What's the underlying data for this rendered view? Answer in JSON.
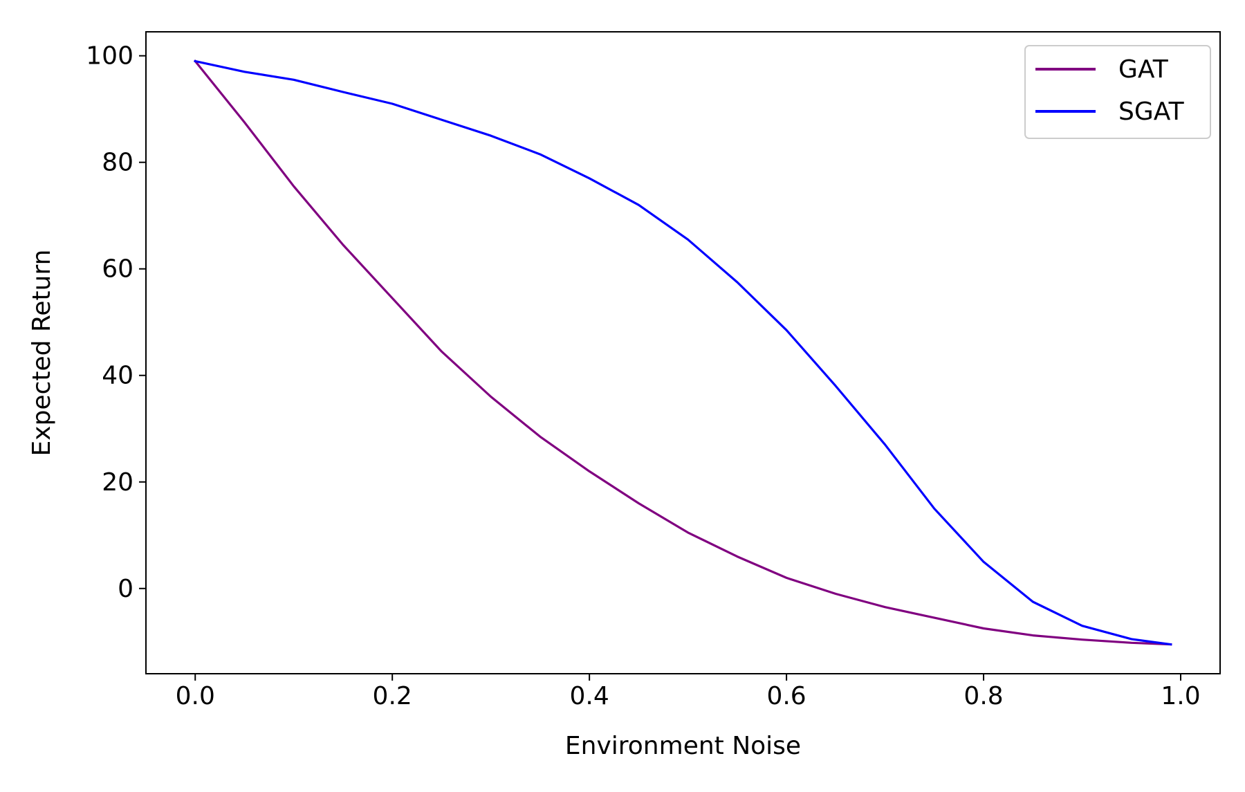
{
  "chart_data": {
    "type": "line",
    "title": "",
    "xlabel": "Environment Noise",
    "ylabel": "Expected Return",
    "xlim": [
      -0.05,
      1.04
    ],
    "ylim": [
      -16,
      104.5
    ],
    "xticks": [
      0.0,
      0.2,
      0.4,
      0.6,
      0.8,
      1.0
    ],
    "xtick_labels": [
      "0.0",
      "0.2",
      "0.4",
      "0.6",
      "0.8",
      "1.0"
    ],
    "yticks": [
      0,
      20,
      40,
      60,
      80,
      100
    ],
    "ytick_labels": [
      "0",
      "20",
      "40",
      "60",
      "80",
      "100"
    ],
    "grid": false,
    "legend_position": "top-right",
    "series": [
      {
        "name": "GAT",
        "color": "#800080",
        "x": [
          0.0,
          0.05,
          0.1,
          0.15,
          0.2,
          0.25,
          0.3,
          0.35,
          0.4,
          0.45,
          0.5,
          0.55,
          0.6,
          0.65,
          0.7,
          0.75,
          0.8,
          0.85,
          0.9,
          0.95,
          0.99
        ],
        "y": [
          99,
          87.5,
          75.5,
          64.5,
          54.5,
          44.5,
          36,
          28.5,
          22,
          16,
          10.5,
          6,
          2,
          -1,
          -3.5,
          -5.5,
          -7.5,
          -8.8,
          -9.6,
          -10.2,
          -10.5
        ]
      },
      {
        "name": "SGAT",
        "color": "#0000ff",
        "x": [
          0.0,
          0.05,
          0.1,
          0.15,
          0.2,
          0.25,
          0.3,
          0.35,
          0.4,
          0.45,
          0.5,
          0.55,
          0.6,
          0.65,
          0.7,
          0.75,
          0.8,
          0.85,
          0.9,
          0.95,
          0.99
        ],
        "y": [
          99,
          97,
          95.5,
          93.2,
          91,
          88,
          85,
          81.5,
          77,
          72,
          65.5,
          57.5,
          48.5,
          38,
          27,
          15,
          5,
          -2.5,
          -7,
          -9.5,
          -10.5
        ]
      }
    ]
  }
}
